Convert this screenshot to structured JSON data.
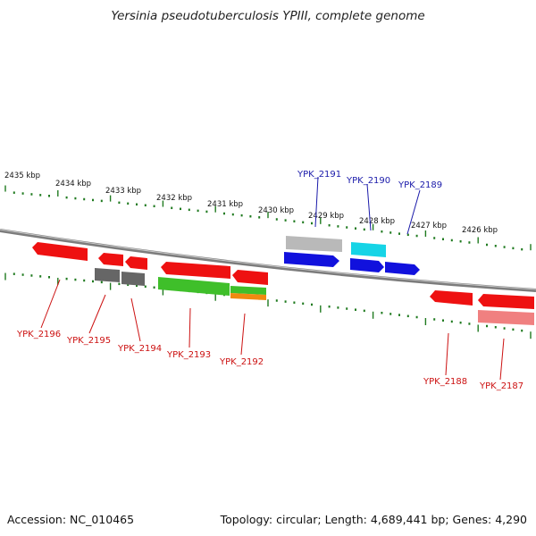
{
  "title": "Yersinia pseudotuberculosis YPIII, complete genome",
  "footer": {
    "accession": "Accession: NC_010465",
    "summary": "Topology: circular; Length: 4,689,441 bp; Genes: 4,290"
  },
  "colors": {
    "backbone": "#8a8a8a",
    "tick": "#1f7a1f",
    "forward_label": "#1a1aaa",
    "reverse_label": "#cc1111",
    "red": "#ee1111",
    "gray": "#6c6c6c",
    "light_gray": "#bdbdbd",
    "green": "#3fbf2a",
    "orange": "#f08a10",
    "blue": "#1111dd",
    "cyan": "#16d4e6",
    "pink": "#f08080"
  },
  "kbp_labels": [
    "2435 kbp",
    "2434 kbp",
    "2433 kbp",
    "2432 kbp",
    "2431 kbp",
    "2430 kbp",
    "2429 kbp",
    "2428 kbp",
    "2427 kbp",
    "2426 kbp"
  ],
  "genes_forward": [
    "YPK_2191",
    "YPK_2190",
    "YPK_2189"
  ],
  "genes_reverse": [
    "YPK_2196",
    "YPK_2195",
    "YPK_2194",
    "YPK_2193",
    "YPK_2192",
    "YPK_2188",
    "YPK_2187"
  ]
}
